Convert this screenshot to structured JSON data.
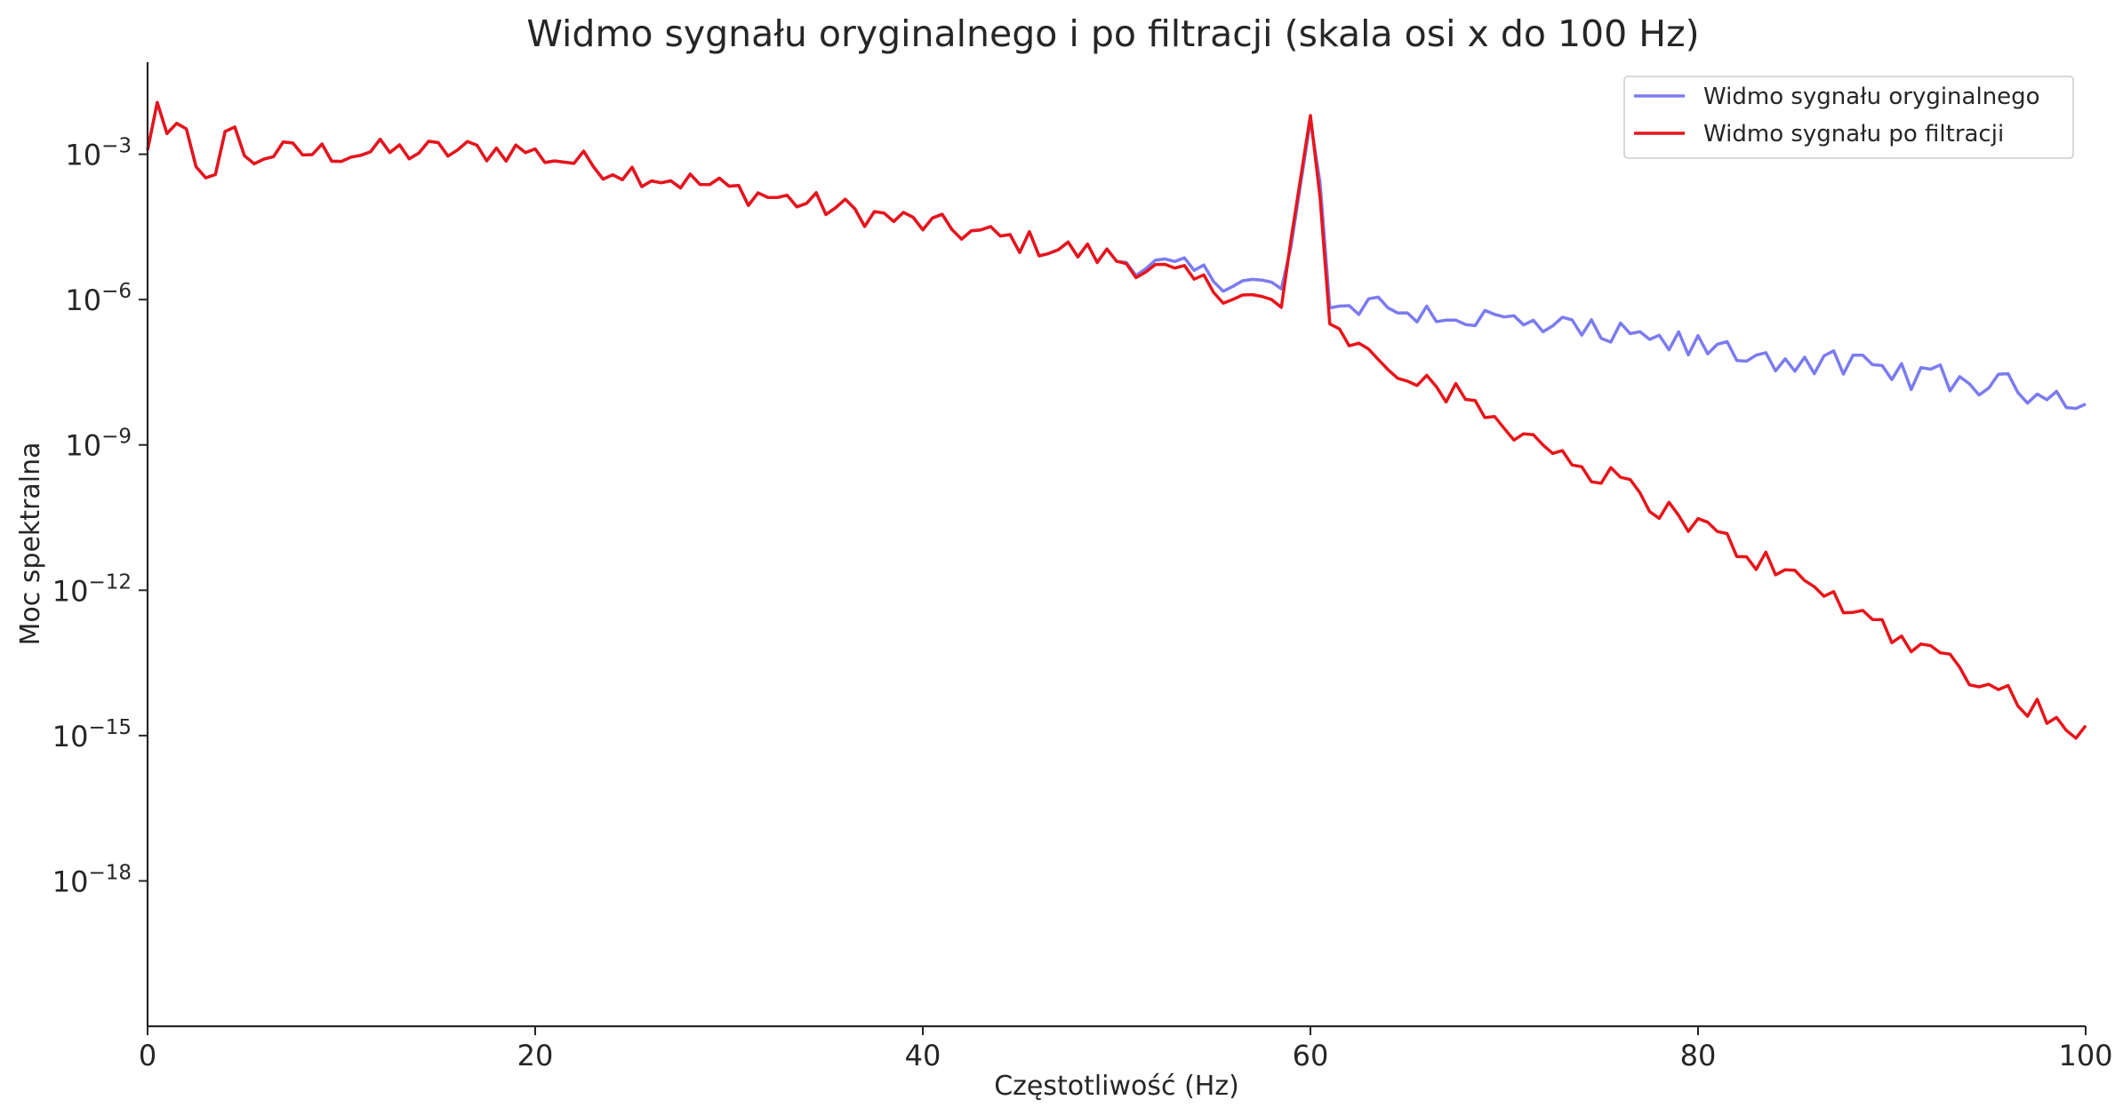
{
  "chart_data": {
    "type": "line",
    "title": "Widmo sygnału oryginalnego i po filtracji (skala osi x do 100 Hz)",
    "xlabel": "Częstotliwość (Hz)",
    "ylabel": "Moc spektralna",
    "xlim": [
      0,
      100
    ],
    "ylim_log10": [
      -21,
      -1.1
    ],
    "yscale": "log",
    "grid": false,
    "legend_position": "top-right",
    "x_ticks": [
      {
        "value": 0,
        "label": "0"
      },
      {
        "value": 20,
        "label": "20"
      },
      {
        "value": 40,
        "label": "40"
      },
      {
        "value": 60,
        "label": "60"
      },
      {
        "value": 80,
        "label": "80"
      },
      {
        "value": 100,
        "label": "100"
      }
    ],
    "y_ticks": [
      {
        "exp": -3,
        "base": "10",
        "sup": "−3"
      },
      {
        "exp": -6,
        "base": "10",
        "sup": "−6"
      },
      {
        "exp": -9,
        "base": "10",
        "sup": "−9"
      },
      {
        "exp": -12,
        "base": "10",
        "sup": "−12"
      },
      {
        "exp": -15,
        "base": "10",
        "sup": "−15"
      },
      {
        "exp": -18,
        "base": "10",
        "sup": "−18"
      }
    ],
    "x_step_hz": 0.5,
    "series": [
      {
        "name": "Widmo sygnału oryginalnego",
        "color": "#7b7bf0",
        "points_note": "log10 power, sampled every 0.5 Hz from 0 Hz",
        "log10_values": []
      },
      {
        "name": "Widmo sygnału po filtracji",
        "color": "#e8141a",
        "log10_values": []
      }
    ]
  }
}
